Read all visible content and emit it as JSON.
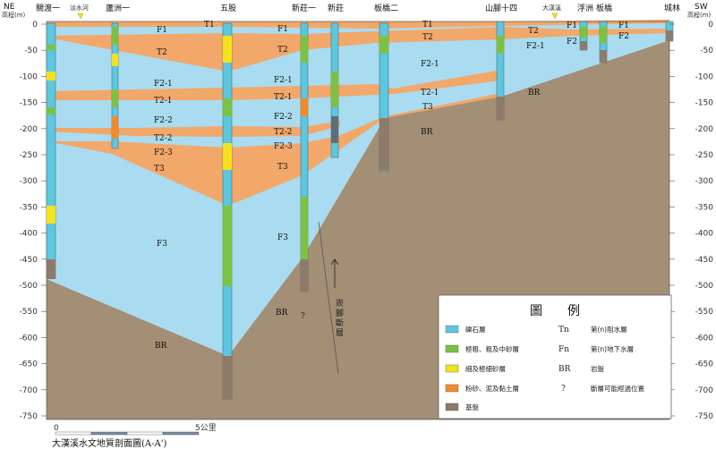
{
  "diagram": {
    "title": "大漢溪水文地質剖面圖(A-A')",
    "side_left": {
      "dir": "NE",
      "unit": "高程(m)"
    },
    "side_right": {
      "dir": "SW",
      "unit": "高程(m)"
    },
    "y_ticks": [
      "0",
      "-50",
      "-100",
      "-150",
      "-200",
      "-250",
      "-300",
      "-350",
      "-400",
      "-450",
      "-500",
      "-550",
      "-600",
      "-650",
      "-700",
      "-750"
    ],
    "scale_bar": {
      "start": "0",
      "end": "5公里"
    },
    "wells": [
      "關渡一",
      "蘆洲一",
      "五股",
      "新莊一",
      "新莊",
      "板橋二",
      "山腳十四",
      "浮洲",
      "板橋",
      "城林"
    ],
    "rivers": [
      "淡水河",
      "大漢溪"
    ],
    "layers": {
      "T1": "T1",
      "F1": "F1",
      "T2": "T2",
      "F2_1": "F2-1",
      "T2_1": "T2-1",
      "F2_2": "F2-2",
      "T2_2": "T2-2",
      "F2_3": "F2-3",
      "T3": "T3",
      "F3": "F3",
      "BR": "BR",
      "F2": "F2"
    },
    "fault": {
      "label": "崁腳斷層",
      "q": "?"
    },
    "legend": {
      "title": "圖　　例",
      "items": [
        {
          "label": "礫石層",
          "color": "#5bc8e0"
        },
        {
          "label": "極粗、粗及中砂層",
          "color": "#7cc242"
        },
        {
          "label": "細及極細砂層",
          "color": "#f4e21c"
        },
        {
          "label": "粉砂、泥及黏土層",
          "color": "#f08a2a"
        },
        {
          "label": "基盤",
          "color": "#8c7a6b"
        }
      ],
      "codes": [
        {
          "code": "Tn",
          "meaning": "第(n)阻水層"
        },
        {
          "code": "Fn",
          "meaning": "第(n)地下水層"
        },
        {
          "code": "BR",
          "meaning": "岩盤"
        },
        {
          "code": "?",
          "meaning": "斷層可能經過位置"
        }
      ]
    },
    "colors": {
      "gravel": "#a9dcf0",
      "clay": "#f2a86a",
      "bedrock": "#a38e76"
    }
  }
}
